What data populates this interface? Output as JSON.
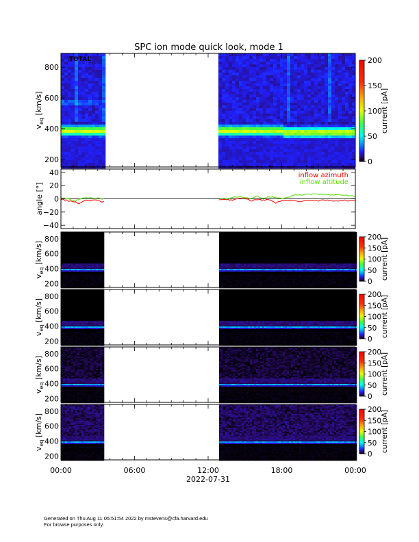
{
  "title": "SPC ion mode quick look, mode 1",
  "footer": {
    "line1": "Generated on Thu Aug 11 05:51:54 2022 by mstevens@cfa.harvard.edu",
    "line2": "For browse purposes only."
  },
  "x_axis": {
    "date_label": "2022-07-31",
    "range_hours": [
      0,
      24
    ],
    "ticks": [
      {
        "hour": 0,
        "label": "00:00"
      },
      {
        "hour": 6,
        "label": "06:00"
      },
      {
        "hour": 12,
        "label": "12:00"
      },
      {
        "hour": 18,
        "label": "18:00"
      },
      {
        "hour": 24,
        "label": "00:00"
      }
    ],
    "data_gaps_hours": [
      [
        3.5,
        12.9
      ]
    ]
  },
  "colorbar": {
    "label": "current [pA]",
    "range": [
      0,
      200
    ],
    "ticks": [
      "0",
      "50",
      "100",
      "150",
      "200"
    ],
    "tick_values": [
      0,
      50,
      100,
      150,
      200
    ]
  },
  "chart_data": [
    {
      "type": "heatmap",
      "panel": "total",
      "annotation": "TOTAL",
      "ylabel_main": "v",
      "ylabel_sub": "eq",
      "ylabel_unit": "[km/s]",
      "ylim": [
        150,
        890
      ],
      "yticks": [
        "200",
        "400",
        "600",
        "800"
      ],
      "ytick_values": [
        200,
        400,
        600,
        800
      ],
      "description_values": {
        "peak_velocity_km_s": 385,
        "peak_current_pA": 80
      }
    },
    {
      "type": "line",
      "panel": "angle",
      "ylabel": "angle [°]",
      "ylim": [
        -45,
        45
      ],
      "yticks": [
        "−40",
        "−20",
        "0",
        "20",
        "40"
      ],
      "ytick_values": [
        -40,
        -20,
        0,
        20,
        40
      ],
      "series": [
        {
          "name": "inflow azimuth",
          "color": "#ff0000",
          "points": [
            [
              0.0,
              -1
            ],
            [
              0.3,
              -2
            ],
            [
              0.6,
              -3
            ],
            [
              0.9,
              -4
            ],
            [
              1.2,
              -5
            ],
            [
              1.5,
              -7
            ],
            [
              1.8,
              -4
            ],
            [
              2.1,
              -2
            ],
            [
              2.4,
              -3
            ],
            [
              2.7,
              -1
            ],
            [
              3.0,
              -3
            ],
            [
              3.3,
              -5
            ],
            [
              3.5,
              -4
            ],
            [
              12.9,
              -1
            ],
            [
              13.5,
              -1
            ],
            [
              14.0,
              -2
            ],
            [
              14.5,
              0
            ],
            [
              15.0,
              1
            ],
            [
              15.5,
              -3
            ],
            [
              16.0,
              -1
            ],
            [
              16.5,
              -2
            ],
            [
              17.0,
              -1
            ],
            [
              17.5,
              -6
            ],
            [
              18.0,
              -3
            ],
            [
              18.5,
              -2
            ],
            [
              19.0,
              -3
            ],
            [
              19.5,
              -4
            ],
            [
              20.0,
              -3
            ],
            [
              20.5,
              -2
            ],
            [
              21.0,
              -3
            ],
            [
              21.5,
              -2
            ],
            [
              22.0,
              -3
            ],
            [
              22.5,
              -3
            ],
            [
              23.0,
              -2
            ],
            [
              23.5,
              -3
            ],
            [
              24.0,
              -3
            ]
          ]
        },
        {
          "name": "inflow altitude",
          "color": "#55dd00",
          "points": [
            [
              0.0,
              2
            ],
            [
              0.3,
              1
            ],
            [
              0.6,
              0
            ],
            [
              0.9,
              -2
            ],
            [
              1.2,
              -3
            ],
            [
              1.5,
              -1
            ],
            [
              1.8,
              1
            ],
            [
              2.1,
              2
            ],
            [
              2.4,
              2
            ],
            [
              2.7,
              1
            ],
            [
              3.0,
              1
            ],
            [
              3.3,
              0
            ],
            [
              3.5,
              0
            ],
            [
              12.9,
              1
            ],
            [
              13.5,
              0
            ],
            [
              14.0,
              2
            ],
            [
              14.5,
              3
            ],
            [
              15.0,
              2
            ],
            [
              15.5,
              0
            ],
            [
              16.0,
              4
            ],
            [
              16.5,
              1
            ],
            [
              17.0,
              3
            ],
            [
              17.5,
              2
            ],
            [
              18.0,
              0
            ],
            [
              18.5,
              2
            ],
            [
              19.0,
              6
            ],
            [
              19.5,
              6
            ],
            [
              20.0,
              7
            ],
            [
              20.5,
              7
            ],
            [
              21.0,
              7
            ],
            [
              21.5,
              7
            ],
            [
              22.0,
              6
            ],
            [
              22.5,
              6
            ],
            [
              23.0,
              6
            ],
            [
              23.5,
              5
            ],
            [
              24.0,
              4
            ]
          ]
        }
      ]
    },
    {
      "type": "heatmap",
      "panel": "sector-1",
      "ylabel_main": "v",
      "ylabel_sub": "eq",
      "ylabel_unit": "[km/s]",
      "ylim": [
        150,
        890
      ],
      "yticks": [
        "200",
        "400",
        "600",
        "800"
      ],
      "ytick_values": [
        200,
        400,
        600,
        800
      ]
    },
    {
      "type": "heatmap",
      "panel": "sector-2",
      "ylabel_main": "v",
      "ylabel_sub": "eq",
      "ylabel_unit": "[km/s]",
      "ylim": [
        150,
        890
      ],
      "yticks": [
        "200",
        "400",
        "600",
        "800"
      ],
      "ytick_values": [
        200,
        400,
        600,
        800
      ]
    },
    {
      "type": "heatmap",
      "panel": "sector-3",
      "ylabel_main": "v",
      "ylabel_sub": "eq",
      "ylabel_unit": "[km/s]",
      "ylim": [
        150,
        890
      ],
      "yticks": [
        "200",
        "400",
        "600",
        "800"
      ],
      "ytick_values": [
        200,
        400,
        600,
        800
      ]
    },
    {
      "type": "heatmap",
      "panel": "sector-4",
      "ylabel_main": "v",
      "ylabel_sub": "eq",
      "ylabel_unit": "[km/s]",
      "ylim": [
        150,
        890
      ],
      "yticks": [
        "200",
        "400",
        "600",
        "800"
      ],
      "ytick_values": [
        200,
        400,
        600,
        800
      ]
    }
  ]
}
